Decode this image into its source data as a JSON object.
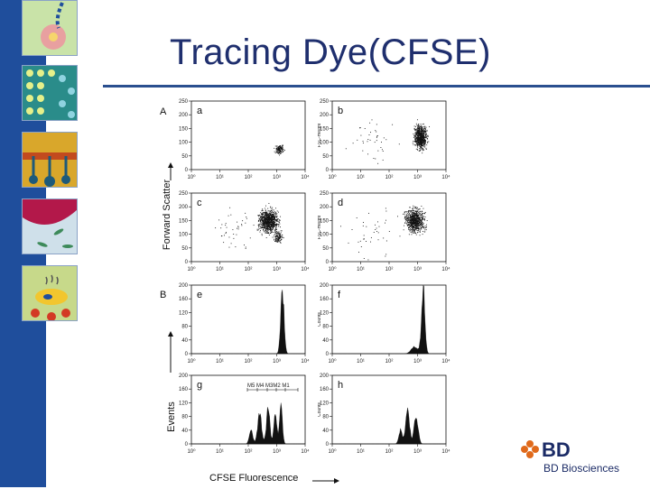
{
  "slide": {
    "title": "Tracing Dye(CFSE)"
  },
  "figure": {
    "section_a": "A",
    "section_b": "B",
    "y_axis_scatter": "Forward Scatter",
    "y_axis_hist": "Events",
    "x_axis": "CFSE Fluorescence",
    "x_ticks": [
      "10⁰",
      "10¹",
      "10²",
      "10³",
      "10⁴"
    ],
    "scatter_yticks": [
      "0",
      "50",
      "100",
      "150",
      "200",
      "250"
    ],
    "hist_yticks": [
      "0",
      "40",
      "80",
      "120",
      "160",
      "200"
    ],
    "ylabel_fsc": "FSC-Height",
    "ylabel_counts": "Counts",
    "gate_label": "M5 M4 M3M2 M1",
    "panels": [
      {
        "id": "a",
        "kind": "scatter"
      },
      {
        "id": "b",
        "kind": "scatter"
      },
      {
        "id": "c",
        "kind": "scatter"
      },
      {
        "id": "d",
        "kind": "scatter"
      },
      {
        "id": "e",
        "kind": "hist"
      },
      {
        "id": "f",
        "kind": "hist"
      },
      {
        "id": "g",
        "kind": "hist"
      },
      {
        "id": "h",
        "kind": "hist"
      }
    ]
  },
  "brand": {
    "logo_text": "BD",
    "subtitle": "BD Biosciences"
  },
  "colors": {
    "sidebar": "#1f4e9c",
    "title": "#1f2f6e",
    "rule": "#2a4f8f",
    "ink": "#111111",
    "logo_orange": "#e06a1b"
  },
  "chart_data": [
    {
      "type": "scatter",
      "panel": "a",
      "description_points": "tight cluster",
      "x_log_range": [
        0,
        4
      ],
      "ylim": [
        0,
        250
      ],
      "clusters": [
        {
          "x_log": 3.1,
          "y": 75,
          "n": "small"
        }
      ]
    },
    {
      "type": "scatter",
      "panel": "b",
      "x_log_range": [
        0,
        4
      ],
      "ylim": [
        0,
        250
      ],
      "clusters": [
        {
          "x_log": 3.1,
          "y": 120,
          "n": "large"
        }
      ]
    },
    {
      "type": "scatter",
      "panel": "c",
      "x_log_range": [
        0,
        4
      ],
      "ylim": [
        0,
        250
      ],
      "clusters": [
        {
          "x_log": 2.7,
          "y": 150,
          "n": "large"
        }
      ]
    },
    {
      "type": "scatter",
      "panel": "d",
      "x_log_range": [
        0,
        4
      ],
      "ylim": [
        0,
        250
      ],
      "clusters": [
        {
          "x_log": 2.9,
          "y": 150,
          "n": "large"
        }
      ]
    },
    {
      "type": "area",
      "panel": "e",
      "x_log_range": [
        0,
        4
      ],
      "ylim": [
        0,
        200
      ],
      "peaks": [
        {
          "x_log": 3.2,
          "height": 180
        }
      ]
    },
    {
      "type": "area",
      "panel": "f",
      "x_log_range": [
        0,
        4
      ],
      "ylim": [
        0,
        200
      ],
      "peaks": [
        {
          "x_log": 2.9,
          "height": 20
        },
        {
          "x_log": 3.2,
          "height": 190
        }
      ]
    },
    {
      "type": "area",
      "panel": "g",
      "x_log_range": [
        0,
        4
      ],
      "ylim": [
        0,
        200
      ],
      "peaks": [
        {
          "x_log": 2.1,
          "height": 40
        },
        {
          "x_log": 2.4,
          "height": 85
        },
        {
          "x_log": 2.7,
          "height": 105
        },
        {
          "x_log": 2.95,
          "height": 100
        },
        {
          "x_log": 3.15,
          "height": 110
        }
      ]
    },
    {
      "type": "area",
      "panel": "h",
      "x_log_range": [
        0,
        4
      ],
      "ylim": [
        0,
        200
      ],
      "peaks": [
        {
          "x_log": 2.4,
          "height": 40
        },
        {
          "x_log": 2.7,
          "height": 100
        },
        {
          "x_log": 2.95,
          "height": 80
        }
      ]
    }
  ]
}
